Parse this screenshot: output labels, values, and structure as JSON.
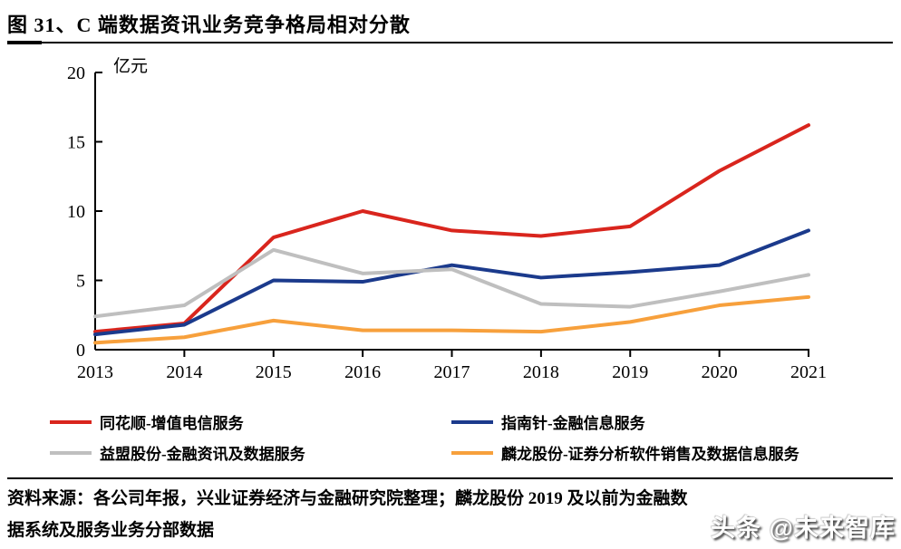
{
  "header": {
    "title": "图 31、C 端数据资讯业务竞争格局相对分散"
  },
  "chart_data": {
    "type": "line",
    "title": "C 端数据资讯业务竞争格局相对分散",
    "unit_label": "亿元",
    "categories": [
      "2013",
      "2014",
      "2015",
      "2016",
      "2017",
      "2018",
      "2019",
      "2020",
      "2021"
    ],
    "yticks": [
      0,
      5,
      10,
      15,
      20
    ],
    "ylim": [
      0,
      20
    ],
    "grid": false,
    "legend_position": "bottom",
    "series": [
      {
        "id": "tonghuashun",
        "name": "同花顺-增值电信服务",
        "color": "#D9251D",
        "values": [
          1.3,
          1.9,
          8.1,
          10.0,
          8.6,
          8.2,
          8.9,
          12.9,
          16.2
        ]
      },
      {
        "id": "zhinanzhen",
        "name": "指南针-金融信息服务",
        "color": "#1B3A8C",
        "values": [
          1.1,
          1.8,
          5.0,
          4.9,
          6.1,
          5.2,
          5.6,
          6.1,
          8.6
        ]
      },
      {
        "id": "yimeng",
        "name": "益盟股份-金融资讯及数据服务",
        "color": "#BFBFBF",
        "values": [
          2.4,
          3.2,
          7.2,
          5.5,
          5.8,
          3.3,
          3.1,
          4.2,
          5.4
        ]
      },
      {
        "id": "linlong",
        "name": "麟龙股份-证券分析软件销售及数据信息服务",
        "color": "#F7A03C",
        "values": [
          0.5,
          0.9,
          2.1,
          1.4,
          1.4,
          1.3,
          2.0,
          3.2,
          3.8
        ]
      }
    ]
  },
  "source": {
    "lines": [
      "资料来源：各公司年报，兴业证券经济与金融研究院整理；麟龙股份 2019 及以前为金融数",
      "据系统及服务业务分部数据"
    ]
  },
  "watermark": "头条 @未来智库"
}
